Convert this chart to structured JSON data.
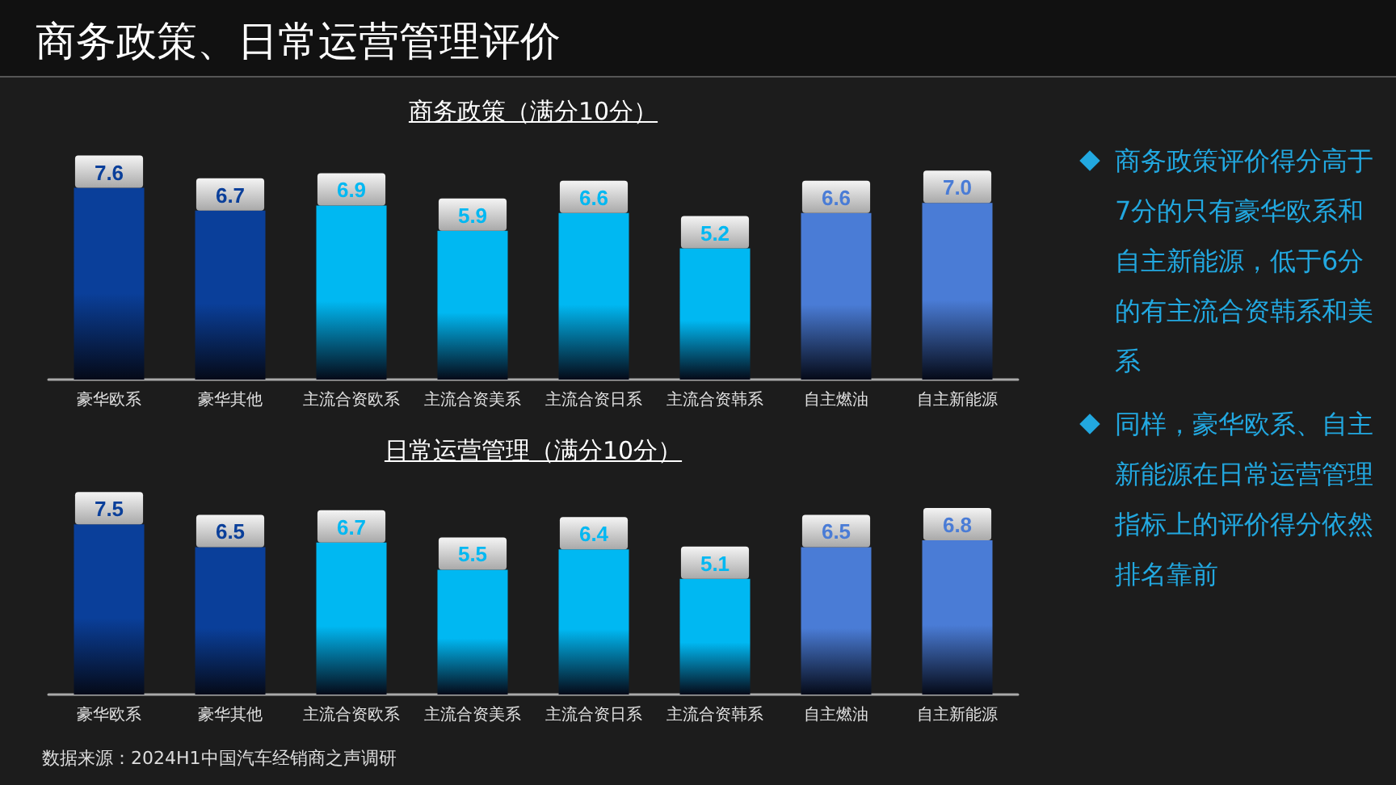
{
  "chart_data": [
    {
      "type": "other",
      "title": "商务政策、日常运营管理评价"
    },
    {
      "type": "bar",
      "title": "商务政策（满分10分）",
      "categories": [
        "豪华欧系",
        "豪华其他",
        "主流合资欧系",
        "主流合资美系",
        "主流合资日系",
        "主流合资韩系",
        "自主燃油",
        "自主新能源"
      ],
      "values": [
        7.6,
        6.7,
        6.9,
        5.9,
        6.6,
        5.2,
        6.6,
        7.0
      ],
      "value_labels": [
        "7.6",
        "6.7",
        "6.9",
        "5.9",
        "6.6",
        "5.2",
        "6.6",
        "7.0"
      ],
      "colors": [
        "#0a3f9a",
        "#0a3f9a",
        "#00b8f2",
        "#00b8f2",
        "#00b8f2",
        "#00b8f2",
        "#4a7cd6",
        "#4a7cd6"
      ]
    },
    {
      "type": "bar",
      "title": "日常运营管理（满分10分）",
      "categories": [
        "豪华欧系",
        "豪华其他",
        "主流合资欧系",
        "主流合资美系",
        "主流合资日系",
        "主流合资韩系",
        "自主燃油",
        "自主新能源"
      ],
      "values": [
        7.5,
        6.5,
        6.7,
        5.5,
        6.4,
        5.1,
        6.5,
        6.8
      ],
      "value_labels": [
        "7.5",
        "6.5",
        "6.7",
        "5.5",
        "6.4",
        "5.1",
        "6.5",
        "6.8"
      ],
      "colors": [
        "#0a3f9a",
        "#0a3f9a",
        "#00b8f2",
        "#00b8f2",
        "#00b8f2",
        "#00b8f2",
        "#4a7cd6",
        "#4a7cd6"
      ],
      "annotations": [
        "数据来源：2024H1中国汽车经销商之声调研"
      ]
    },
    {
      "type": "other",
      "annotations": [
        "商务政策评价得分高于7分的只有豪华欧系和自主新能源，低于6分的有主流合资韩系和美系",
        "同样，豪华欧系、自主新能源在日常运营管理指标上的评价得分依然排名靠前"
      ]
    }
  ]
}
